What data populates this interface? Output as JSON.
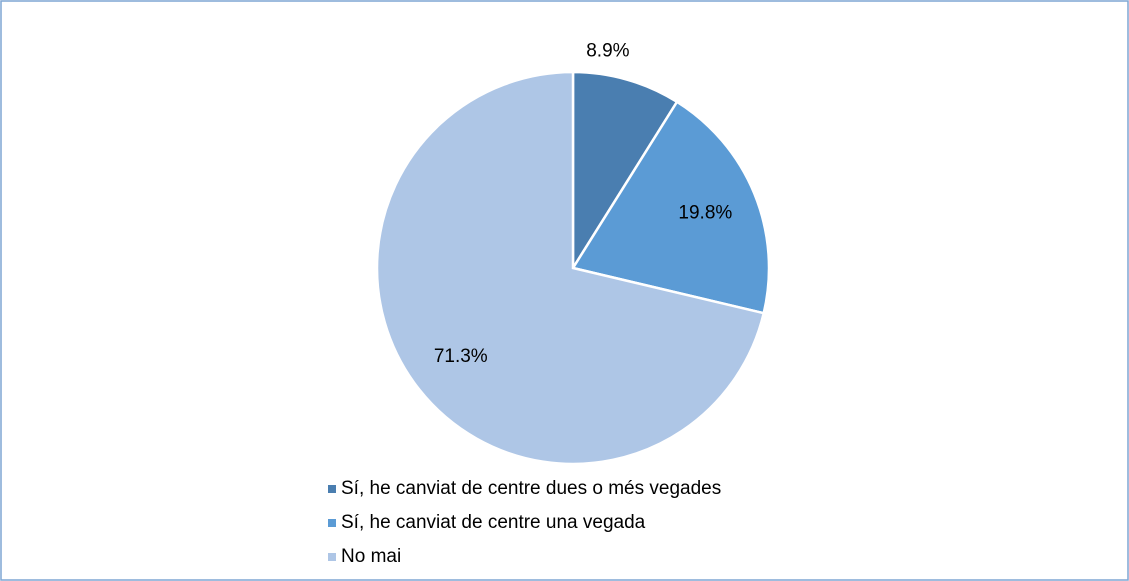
{
  "chart_data": {
    "type": "pie",
    "categories": [
      "Sí, he canviat de centre dues o més vegades",
      "Sí, he canviat de centre una vegada",
      "No mai"
    ],
    "values": [
      8.9,
      19.8,
      71.3
    ],
    "value_labels": [
      "8.9%",
      "19.8%",
      "71.3%"
    ],
    "colors": [
      "#4a7eb0",
      "#5b9bd5",
      "#aec6e6"
    ],
    "legend": "bottom"
  }
}
